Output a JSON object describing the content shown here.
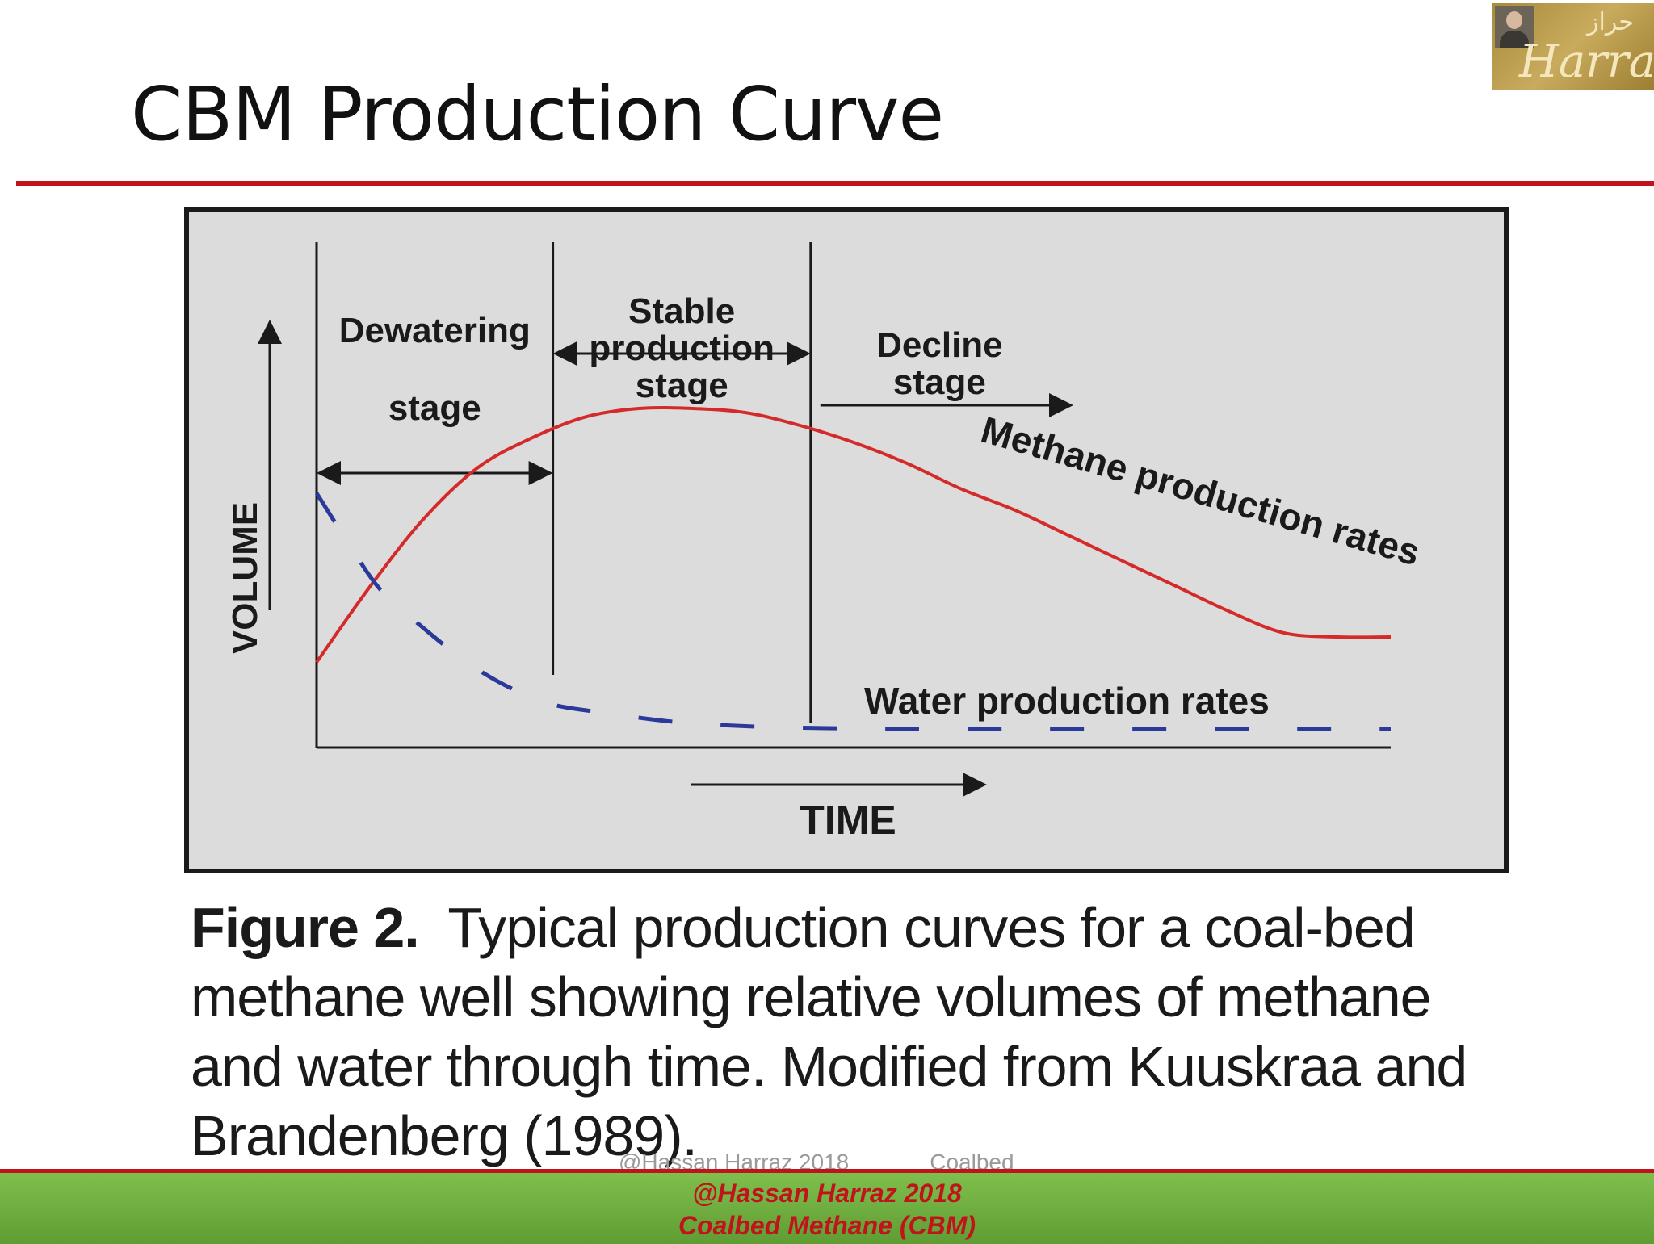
{
  "slide": {
    "title": "CBM Production Curve",
    "logo_text": "Harraz",
    "logo_arabic": "حراز"
  },
  "chart_data": {
    "type": "line",
    "xlabel": "TIME",
    "ylabel": "VOLUME",
    "xlim": [
      0,
      100
    ],
    "ylim": [
      0,
      100
    ],
    "grid": false,
    "stages": [
      {
        "label_lines": [
          "Dewatering"
        ],
        "label_lines_below": [
          "stage"
        ],
        "start": 0,
        "end": 22
      },
      {
        "label_lines": [
          "Stable",
          "production",
          "stage"
        ],
        "start": 22,
        "end": 46
      },
      {
        "label_lines": [
          "Decline",
          "stage"
        ],
        "start": 46,
        "end": 70
      }
    ],
    "series": [
      {
        "name": "Methane production rates",
        "style": "solid",
        "color": "#d42a2a",
        "x": [
          0,
          5,
          10,
          15,
          20,
          25,
          30,
          35,
          40,
          45,
          50,
          55,
          60,
          65,
          70,
          75,
          80,
          85,
          90,
          95,
          100
        ],
        "y": [
          19,
          37,
          53,
          65,
          72,
          77,
          79,
          79,
          78,
          75,
          71,
          66,
          60,
          55,
          49,
          43,
          37,
          31,
          26,
          25,
          25
        ]
      },
      {
        "name": "Water production rates",
        "style": "dashed",
        "color": "#2b3a9a",
        "x": [
          0,
          3,
          6,
          10,
          14,
          18,
          22,
          27,
          33,
          39,
          46,
          55,
          65,
          75,
          85,
          95,
          100
        ],
        "y": [
          59,
          47,
          36,
          27,
          19,
          13,
          9,
          7,
          5,
          4,
          3.5,
          3.3,
          3.2,
          3.2,
          3.2,
          3.2,
          3.2
        ]
      }
    ]
  },
  "caption": {
    "label": "Figure 2.",
    "text": "Typical production curves for a coal-bed methane well showing relative volumes of methane and water through time. Modified from Kuuskraa and Brandenberg (1989)."
  },
  "footer": {
    "faded_author": "@Hassan Harraz 2018",
    "faded_topic": "Coalbed",
    "line1": "@Hassan Harraz 2018",
    "line2": "Coalbed Methane (CBM)"
  }
}
